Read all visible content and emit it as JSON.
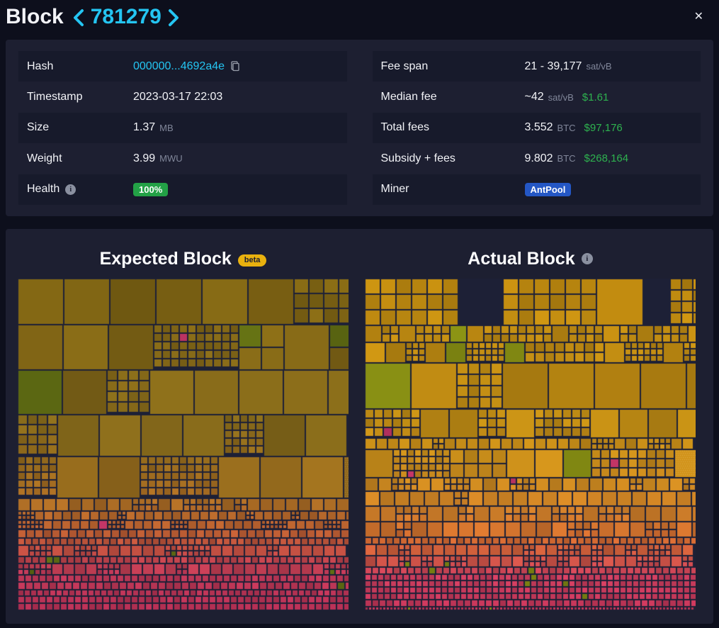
{
  "header": {
    "title": "Block",
    "block_height": "781279",
    "close_label": "✕"
  },
  "colors": {
    "accent_cyan": "#24c5f2",
    "money_green": "#2eb24f",
    "health_green": "#23a146",
    "pool_blue": "#2457c5",
    "beta_amber": "#e9b10e"
  },
  "details": {
    "left_rows": [
      {
        "label": "Hash",
        "value": "000000...4692a4e",
        "link": true,
        "copy_icon": true
      },
      {
        "label": "Timestamp",
        "value": "2023-03-17 22:03"
      },
      {
        "label": "Size",
        "value": "1.37",
        "unit": "MB"
      },
      {
        "label": "Weight",
        "value": "3.99",
        "unit": "MWU"
      },
      {
        "label": "Health",
        "value": "100%",
        "badge": "success",
        "info_icon": true
      }
    ],
    "right_rows": [
      {
        "label": "Fee span",
        "value": "21 - 39,177",
        "unit": "sat/vB"
      },
      {
        "label": "Median fee",
        "value": "~42",
        "unit": "sat/vB",
        "usd": "$1.61"
      },
      {
        "label": "Total fees",
        "value": "3.552",
        "unit": "BTC",
        "usd": "$97,176"
      },
      {
        "label": "Subsidy + fees",
        "value": "9.802",
        "unit": "BTC",
        "usd": "$268,164"
      },
      {
        "label": "Miner",
        "value": "AntPool",
        "badge": "pool"
      }
    ]
  },
  "viz": {
    "expected_title": "Expected Block",
    "beta_label": "beta",
    "actual_title": "Actual Block",
    "expected": {
      "seed": 20230317,
      "bg": "#1d2036",
      "olive": "#5d6912",
      "pink": "#c23566",
      "olive_prob": 0.13,
      "stops": [
        [
          0.0,
          "#7c6213"
        ],
        [
          0.42,
          "#84681a"
        ],
        [
          0.55,
          "#95691c"
        ],
        [
          0.66,
          "#a96a24"
        ],
        [
          0.75,
          "#b65c30"
        ],
        [
          0.82,
          "#bb4744"
        ],
        [
          0.87,
          "#b93754"
        ],
        [
          1.0,
          "#b02e52"
        ]
      ]
    },
    "actual": {
      "seed": 781279,
      "bg": "#1d2036",
      "olive": "#7e8512",
      "pink": "#c23566",
      "olive_prob": 0.12,
      "stops": [
        [
          0.0,
          "#b9860f"
        ],
        [
          0.42,
          "#bd8a14"
        ],
        [
          0.58,
          "#c4861d"
        ],
        [
          0.68,
          "#c97b27"
        ],
        [
          0.78,
          "#cb6530"
        ],
        [
          0.84,
          "#c74e48"
        ],
        [
          0.89,
          "#c63b5b"
        ],
        [
          1.0,
          "#bc3356"
        ]
      ]
    }
  }
}
